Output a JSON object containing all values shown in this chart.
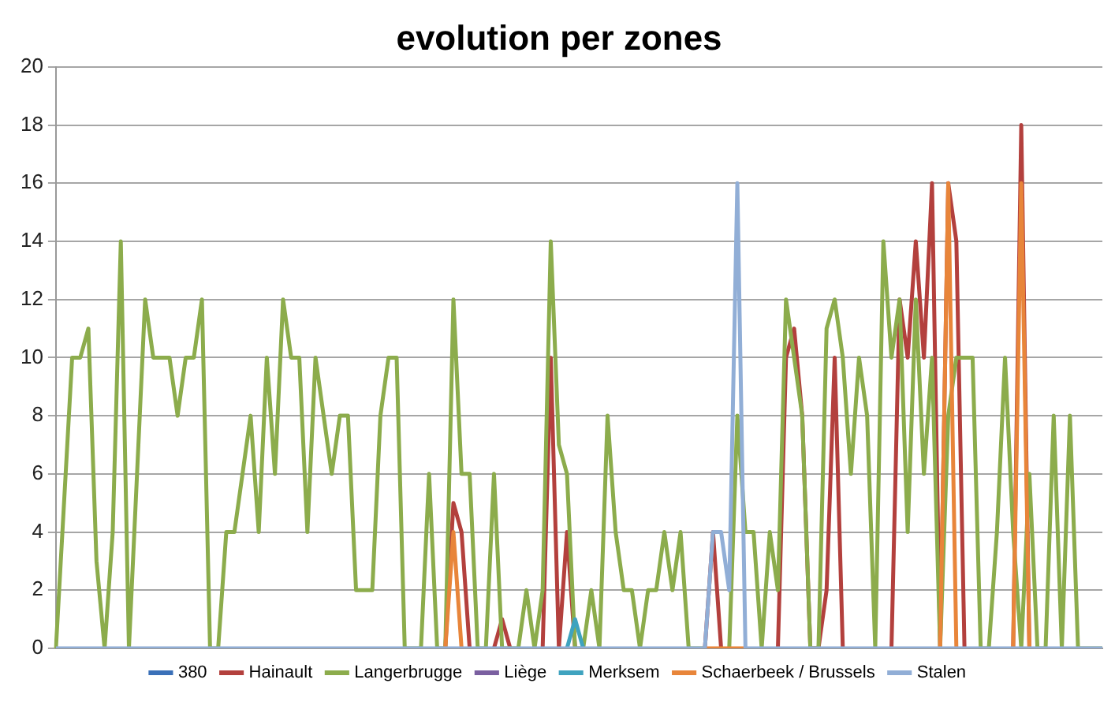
{
  "chart_data": {
    "type": "line",
    "title": "evolution per zones",
    "categories": [
      null,
      null,
      null,
      null,
      null,
      null,
      null,
      null,
      null,
      null,
      null,
      null,
      null,
      null,
      null,
      null,
      null,
      null,
      null,
      null,
      null,
      null,
      null,
      null,
      null,
      null,
      null,
      null,
      null,
      null,
      null,
      null,
      null,
      null,
      null,
      null,
      null,
      null,
      null,
      null,
      null,
      null,
      null,
      null,
      null,
      null,
      null,
      null,
      null,
      null,
      null,
      null,
      null,
      null,
      null,
      null,
      null,
      null,
      null,
      null,
      null,
      null,
      null,
      null,
      null,
      null,
      null,
      null,
      null,
      null,
      null,
      null,
      null,
      null,
      null,
      null,
      null,
      null,
      null,
      null,
      null,
      null,
      null,
      null,
      null,
      null,
      null,
      null,
      null,
      null,
      null,
      null,
      null,
      null,
      null,
      null,
      null,
      null,
      null,
      null,
      null,
      null,
      null,
      null,
      null,
      null,
      null,
      null,
      null,
      null,
      null,
      null,
      null,
      null,
      null,
      null,
      null,
      null,
      null,
      null,
      null,
      null,
      null,
      null,
      null,
      null,
      null,
      null,
      null,
      null
    ],
    "ylim": [
      0,
      20
    ],
    "yticks": [
      0,
      2,
      4,
      6,
      8,
      10,
      12,
      14,
      16,
      18,
      20
    ],
    "grid": "y",
    "legend": "bottom",
    "tick_labels": "y",
    "marker": "none",
    "line_style": "solid",
    "series": [
      {
        "name": "380",
        "color": "#3a70b8",
        "values": [
          null,
          null,
          null,
          null,
          null,
          null,
          null,
          null,
          null,
          null,
          null,
          null,
          null,
          null,
          null,
          null,
          null,
          null,
          null,
          null,
          null,
          null,
          null,
          null,
          null,
          null,
          null,
          null,
          null,
          null,
          null,
          null,
          null,
          null,
          null,
          null,
          null,
          null,
          null,
          null,
          null,
          null,
          null,
          null,
          null,
          null,
          null,
          null,
          null,
          null,
          null,
          null,
          null,
          null,
          null,
          null,
          null,
          null,
          null,
          null,
          null,
          null,
          null,
          null,
          null,
          null,
          null,
          null,
          null,
          null,
          null,
          null,
          null,
          null,
          null,
          null,
          null,
          null,
          null,
          null,
          null,
          null,
          null,
          null,
          null,
          null,
          null,
          null,
          null,
          null,
          null,
          null,
          null,
          null,
          null,
          null,
          null,
          null,
          null,
          null,
          null,
          null,
          null,
          null,
          null,
          null,
          null,
          null,
          null,
          null,
          null,
          null,
          null,
          null,
          null,
          null,
          null,
          null,
          null,
          null,
          null,
          null,
          null,
          null,
          null,
          null,
          null,
          null,
          null,
          null
        ]
      },
      {
        "name": "Hainault",
        "color": "#b3403d",
        "values": [
          null,
          null,
          null,
          null,
          null,
          null,
          null,
          null,
          null,
          null,
          null,
          null,
          null,
          null,
          null,
          null,
          null,
          null,
          null,
          null,
          null,
          null,
          null,
          null,
          null,
          null,
          null,
          null,
          null,
          null,
          null,
          null,
          null,
          null,
          null,
          null,
          null,
          null,
          null,
          null,
          null,
          null,
          null,
          null,
          null,
          null,
          null,
          null,
          0,
          5,
          4,
          0,
          null,
          null,
          0,
          1,
          0,
          null,
          null,
          null,
          0,
          10,
          0,
          4,
          0,
          null,
          null,
          null,
          null,
          null,
          null,
          null,
          null,
          null,
          null,
          null,
          null,
          null,
          null,
          null,
          0,
          4,
          0,
          null,
          null,
          null,
          null,
          null,
          null,
          0,
          10,
          11,
          8,
          0,
          0,
          2,
          10,
          0,
          null,
          null,
          null,
          null,
          null,
          0,
          12,
          10,
          14,
          10,
          16,
          0,
          16,
          14,
          0,
          null,
          null,
          null,
          null,
          null,
          0,
          18,
          0,
          null,
          null,
          null,
          null,
          null,
          null,
          null,
          null,
          null
        ]
      },
      {
        "name": "Langerbrugge",
        "color": "#8cac4c",
        "values": [
          0,
          5,
          10,
          10,
          11,
          3,
          0,
          4,
          14,
          0,
          6,
          12,
          10,
          10,
          10,
          8,
          10,
          10,
          12,
          0,
          0,
          4,
          4,
          6,
          8,
          4,
          10,
          6,
          12,
          10,
          10,
          4,
          10,
          8,
          6,
          8,
          8,
          2,
          2,
          2,
          8,
          10,
          10,
          0,
          0,
          0,
          6,
          0,
          0,
          12,
          6,
          6,
          0,
          0,
          6,
          0,
          0,
          0,
          2,
          0,
          2,
          14,
          7,
          6,
          0,
          0,
          2,
          0,
          8,
          4,
          2,
          2,
          0,
          2,
          2,
          4,
          2,
          4,
          0,
          0,
          0,
          null,
          null,
          0,
          8,
          4,
          4,
          0,
          4,
          2,
          12,
          10,
          8,
          0,
          0,
          11,
          12,
          10,
          6,
          10,
          8,
          0,
          14,
          10,
          12,
          4,
          12,
          6,
          10,
          0,
          8,
          10,
          10,
          10,
          0,
          0,
          4,
          10,
          4,
          0,
          6,
          0,
          0,
          8,
          0,
          8,
          0,
          0,
          0,
          0
        ]
      },
      {
        "name": "Liège",
        "color": "#7a5fa0",
        "values": [
          null,
          null,
          null,
          null,
          null,
          null,
          null,
          null,
          null,
          null,
          null,
          null,
          null,
          null,
          null,
          null,
          null,
          null,
          null,
          null,
          null,
          null,
          null,
          null,
          null,
          null,
          null,
          null,
          null,
          null,
          null,
          null,
          null,
          null,
          null,
          null,
          null,
          null,
          null,
          null,
          null,
          null,
          null,
          null,
          null,
          null,
          null,
          null,
          null,
          null,
          null,
          null,
          null,
          null,
          null,
          null,
          null,
          null,
          null,
          null,
          null,
          null,
          null,
          null,
          null,
          null,
          null,
          null,
          null,
          null,
          null,
          null,
          null,
          null,
          null,
          null,
          null,
          null,
          null,
          null,
          null,
          null,
          null,
          null,
          null,
          null,
          null,
          null,
          null,
          null,
          null,
          null,
          null,
          null,
          null,
          null,
          null,
          null,
          null,
          null,
          null,
          null,
          null,
          null,
          null,
          null,
          null,
          null,
          null,
          null,
          null,
          null,
          null,
          null,
          null,
          null,
          null,
          null,
          null,
          null,
          null,
          null,
          null,
          null,
          null,
          null,
          null,
          null,
          null,
          null
        ]
      },
      {
        "name": "Merksem",
        "color": "#3fa3bf",
        "values": [
          null,
          null,
          null,
          null,
          null,
          null,
          null,
          null,
          null,
          null,
          null,
          null,
          null,
          null,
          null,
          null,
          null,
          null,
          null,
          null,
          null,
          null,
          null,
          null,
          null,
          null,
          null,
          null,
          null,
          null,
          null,
          null,
          null,
          null,
          null,
          null,
          null,
          null,
          null,
          null,
          null,
          null,
          null,
          null,
          null,
          null,
          null,
          null,
          null,
          null,
          null,
          null,
          null,
          null,
          null,
          null,
          null,
          null,
          null,
          null,
          null,
          null,
          null,
          0,
          1,
          0,
          null,
          null,
          null,
          null,
          null,
          null,
          null,
          null,
          null,
          null,
          null,
          null,
          null,
          null,
          null,
          null,
          null,
          null,
          null,
          null,
          null,
          null,
          null,
          null,
          null,
          null,
          null,
          null,
          null,
          null,
          null,
          null,
          null,
          null,
          null,
          null,
          null,
          null,
          null,
          null,
          null,
          null,
          null,
          null,
          null,
          null,
          null,
          null,
          null,
          null,
          null,
          null,
          null,
          null,
          null,
          null,
          null,
          null,
          null,
          null,
          null,
          null,
          null,
          null
        ]
      },
      {
        "name": "Schaerbeek / Brussels",
        "color": "#e8853a",
        "values": [
          null,
          null,
          null,
          null,
          null,
          null,
          null,
          null,
          null,
          null,
          null,
          null,
          null,
          null,
          null,
          null,
          null,
          null,
          null,
          null,
          null,
          null,
          null,
          null,
          null,
          null,
          null,
          null,
          null,
          null,
          null,
          null,
          null,
          null,
          null,
          null,
          null,
          null,
          null,
          null,
          null,
          null,
          null,
          null,
          null,
          null,
          null,
          null,
          0,
          4,
          0,
          null,
          null,
          null,
          null,
          null,
          null,
          null,
          null,
          null,
          null,
          null,
          null,
          null,
          null,
          null,
          null,
          null,
          null,
          null,
          null,
          null,
          null,
          null,
          null,
          null,
          null,
          null,
          null,
          null,
          0,
          0,
          0,
          0,
          0,
          0,
          null,
          null,
          null,
          null,
          null,
          null,
          null,
          null,
          null,
          null,
          null,
          null,
          null,
          null,
          null,
          null,
          null,
          null,
          null,
          null,
          null,
          null,
          null,
          0,
          16,
          0,
          null,
          null,
          null,
          null,
          null,
          null,
          0,
          16,
          0,
          null,
          null,
          null,
          null,
          null,
          null,
          null,
          null,
          null
        ]
      },
      {
        "name": "Stalen",
        "color": "#91aed6",
        "values": [
          0,
          0,
          0,
          0,
          0,
          0,
          0,
          0,
          0,
          0,
          0,
          0,
          0,
          0,
          0,
          0,
          0,
          0,
          0,
          0,
          0,
          0,
          0,
          0,
          0,
          0,
          0,
          0,
          0,
          0,
          0,
          0,
          0,
          0,
          0,
          0,
          0,
          0,
          0,
          0,
          0,
          0,
          0,
          0,
          0,
          0,
          0,
          0,
          0,
          0,
          0,
          0,
          0,
          0,
          0,
          0,
          0,
          0,
          0,
          0,
          0,
          0,
          0,
          0,
          0,
          0,
          0,
          0,
          0,
          0,
          0,
          0,
          0,
          0,
          0,
          0,
          0,
          0,
          0,
          0,
          0,
          4,
          4,
          2,
          16,
          0,
          0,
          0,
          0,
          0,
          0,
          0,
          0,
          0,
          0,
          0,
          0,
          0,
          0,
          0,
          0,
          0,
          0,
          0,
          0,
          0,
          0,
          0,
          0,
          0,
          0,
          0,
          0,
          0,
          0,
          0,
          0,
          0,
          0,
          0,
          0,
          0,
          0,
          0,
          0,
          0,
          0,
          0,
          0,
          0
        ]
      }
    ]
  }
}
